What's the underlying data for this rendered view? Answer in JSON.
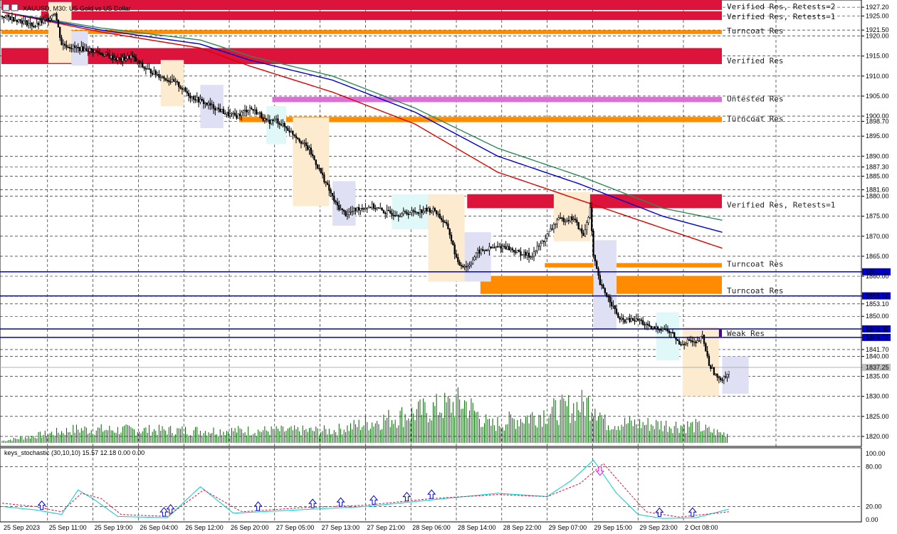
{
  "header": {
    "symbol": "XAUUSD, M30: US Gold vs US Dollar",
    "indicator": "keys_stochastic (30,10,10) 15.57 12.18 0.00 0.00"
  },
  "colors": {
    "resistance_red": "#dc143c",
    "turncoat_orange": "#ff8c00",
    "untested_violet": "#da70d6",
    "weak_purple": "#4b0082",
    "ma_green": "#2e8b57",
    "ma_blue": "#0000cd",
    "ma_red": "#e00000",
    "hline_blue": "#0000cd",
    "volume_green": "#006400",
    "stoch_main": "#00ced1",
    "stoch_signal": "#dc143c"
  },
  "chart_data": [
    {
      "type": "candlestick",
      "symbol": "XAUUSD",
      "timeframe": "M30",
      "ylim": [
        1817.5,
        1929
      ],
      "price_ticks": [
        "1927.20",
        "1925.00",
        "1921.50",
        "1920.00",
        "1915.00",
        "1910.00",
        "1905.00",
        "1900.00",
        "1898.70",
        "1895.00",
        "1890.00",
        "1887.30",
        "1885.00",
        "1881.60",
        "1880.00",
        "1875.00",
        "1870.00",
        "1865.00",
        "1861.11",
        "1860.00",
        "1855.10",
        "1855.00",
        "1853.10",
        "1850.00",
        "1846.85",
        "1844.73",
        "1841.70",
        "1840.00",
        "1837.25",
        "1835.00",
        "1830.00",
        "1825.00",
        "1820.00"
      ],
      "price_highlights": [
        {
          "label": "1861.11",
          "bg": "#0000cd"
        },
        {
          "label": "1855.10",
          "bg": "#0000cd"
        },
        {
          "label": "1846.85",
          "bg": "#0000cd"
        },
        {
          "label": "1844.73",
          "bg": "#0000cd"
        },
        {
          "label": "1837.25",
          "bg": "#c0c0c0"
        }
      ],
      "time_labels": [
        "25 Sep 2023",
        "25 Sep 11:00",
        "25 Sep 19:00",
        "26 Sep 04:00",
        "26 Sep 12:00",
        "26 Sep 20:00",
        "27 Sep 05:00",
        "27 Sep 13:00",
        "27 Sep 21:00",
        "28 Sep 06:00",
        "28 Sep 14:00",
        "28 Sep 22:00",
        "29 Sep 07:00",
        "29 Sep 15:00",
        "29 Sep 23:00",
        "2 Oct 08:00"
      ],
      "close_path": [
        [
          0,
          1925
        ],
        [
          10,
          1924
        ],
        [
          20,
          1922.5
        ],
        [
          28,
          1924.5
        ],
        [
          32,
          1926
        ],
        [
          36,
          1918
        ],
        [
          44,
          1917
        ],
        [
          54,
          1916.5
        ],
        [
          64,
          1915
        ],
        [
          72,
          1914
        ],
        [
          78,
          1915
        ],
        [
          86,
          1912
        ],
        [
          96,
          1910
        ],
        [
          106,
          1908
        ],
        [
          114,
          1905
        ],
        [
          124,
          1903
        ],
        [
          132,
          1901.5
        ],
        [
          136,
          1900.5
        ],
        [
          142,
          1900
        ],
        [
          150,
          1902
        ],
        [
          156,
          1900.5
        ],
        [
          160,
          1898.5
        ],
        [
          166,
          1899
        ],
        [
          172,
          1897
        ],
        [
          178,
          1895
        ],
        [
          186,
          1891.5
        ],
        [
          194,
          1885
        ],
        [
          202,
          1878
        ],
        [
          208,
          1875.5
        ],
        [
          216,
          1877
        ],
        [
          224,
          1877.5
        ],
        [
          232,
          1876
        ],
        [
          240,
          1875.5
        ],
        [
          248,
          1876
        ],
        [
          256,
          1876.5
        ],
        [
          262,
          1876.5
        ],
        [
          270,
          1872
        ],
        [
          276,
          1863
        ],
        [
          282,
          1862.5
        ],
        [
          288,
          1866
        ],
        [
          296,
          1867
        ],
        [
          304,
          1867.5
        ],
        [
          312,
          1866
        ],
        [
          320,
          1865
        ],
        [
          328,
          1869
        ],
        [
          336,
          1874
        ],
        [
          346,
          1874.5
        ],
        [
          352,
          1870
        ],
        [
          356,
          1877
        ],
        [
          358,
          1865
        ],
        [
          362,
          1858
        ],
        [
          368,
          1854
        ],
        [
          374,
          1849
        ],
        [
          380,
          1849
        ],
        [
          386,
          1849
        ],
        [
          392,
          1847
        ],
        [
          400,
          1847
        ],
        [
          406,
          1845.5
        ],
        [
          410,
          1843
        ],
        [
          416,
          1844
        ],
        [
          420,
          1843
        ],
        [
          424,
          1845
        ],
        [
          428,
          1838
        ],
        [
          434,
          1834
        ],
        [
          440,
          1836
        ]
      ],
      "zones": [
        {
          "label": "Verified Res, Retests=2",
          "low": 1926.5,
          "high": 1929,
          "color": "#dc143c",
          "start": 0
        },
        {
          "label": "Verified Res, Retests=1",
          "low": 1924.0,
          "high": 1926.2,
          "color": "#dc143c",
          "start": 24
        },
        {
          "label": "Turncoat Res",
          "low": 1920.5,
          "high": 1921.5,
          "color": "#ff8c00",
          "start": 0
        },
        {
          "label": "Verified Res",
          "low": 1913.0,
          "high": 1917.0,
          "color": "#dc143c",
          "start": 0
        },
        {
          "label": "Untested Res",
          "low": 1903.5,
          "high": 1904.8,
          "color": "#da70d6",
          "start": 164
        },
        {
          "label": "Turncoat Res",
          "low": 1898.5,
          "high": 1899.8,
          "color": "#ff8c00",
          "start": 144
        },
        {
          "label": "Verified Res, Retests=1",
          "low": 1877.0,
          "high": 1880.5,
          "color": "#dc143c",
          "start": 282
        },
        {
          "label": "Turncoat Res",
          "low": 1862.2,
          "high": 1863.3,
          "color": "#ff8c00",
          "start": 329
        },
        {
          "label": "Turncoat Res",
          "low": 1855.6,
          "high": 1860.1,
          "color": "#ff8c00",
          "start": 290
        },
        {
          "label": "Weak Res",
          "low": 1844.9,
          "high": 1846.7,
          "color": "#4b0082",
          "start": 420
        }
      ],
      "horizontal_lines": [
        1861.11,
        1855.1,
        1846.85,
        1844.73
      ],
      "current_price": 1837.25,
      "moving_averages": [
        {
          "color": "#2e8b57",
          "path": [
            [
              0,
              1926
            ],
            [
              60,
              1922
            ],
            [
              120,
              1919
            ],
            [
              150,
              1915
            ],
            [
              200,
              1910
            ],
            [
              250,
              1902
            ],
            [
              300,
              1892
            ],
            [
              350,
              1885
            ],
            [
              400,
              1877
            ],
            [
              436,
              1874
            ]
          ]
        },
        {
          "color": "#0000cd",
          "path": [
            [
              0,
              1926
            ],
            [
              60,
              1921.5
            ],
            [
              120,
              1918
            ],
            [
              150,
              1914
            ],
            [
              200,
              1909
            ],
            [
              250,
              1901
            ],
            [
              300,
              1890
            ],
            [
              350,
              1883
            ],
            [
              400,
              1875
            ],
            [
              436,
              1871
            ]
          ]
        },
        {
          "color": "#e00000",
          "path": [
            [
              0,
              1926
            ],
            [
              60,
              1921
            ],
            [
              120,
              1917
            ],
            [
              150,
              1912.5
            ],
            [
              200,
              1906
            ],
            [
              250,
              1898
            ],
            [
              300,
              1886
            ],
            [
              350,
              1879
            ],
            [
              400,
              1872
            ],
            [
              436,
              1867
            ]
          ]
        }
      ],
      "volume_peaks": [
        [
          0,
          3
        ],
        [
          45,
          20
        ],
        [
          120,
          18
        ],
        [
          200,
          18
        ],
        [
          280,
          60
        ],
        [
          295,
          26
        ],
        [
          359,
          60
        ],
        [
          365,
          30
        ],
        [
          420,
          25
        ],
        [
          428,
          18
        ],
        [
          436,
          14
        ]
      ]
    },
    {
      "type": "line",
      "title": "keys_stochastic (30,10,10) 15.57 12.18 0.00 0.00",
      "ylim": [
        0,
        100
      ],
      "y_ticks": [
        "100.00",
        "80.00",
        "20.00",
        "0.00"
      ],
      "series": [
        {
          "color": "#00ced1",
          "path": [
            [
              0,
              20
            ],
            [
              20,
              15
            ],
            [
              36,
              8
            ],
            [
              46,
              45
            ],
            [
              56,
              30
            ],
            [
              70,
              5
            ],
            [
              100,
              3
            ],
            [
              120,
              50
            ],
            [
              140,
              10
            ],
            [
              180,
              15
            ],
            [
              220,
              20
            ],
            [
              260,
              30
            ],
            [
              300,
              40
            ],
            [
              330,
              35
            ],
            [
              345,
              60
            ],
            [
              358,
              90
            ],
            [
              372,
              40
            ],
            [
              385,
              8
            ],
            [
              400,
              2
            ],
            [
              420,
              3
            ],
            [
              440,
              16
            ]
          ]
        },
        {
          "color": "#dc143c",
          "path": [
            [
              0,
              25
            ],
            [
              20,
              20
            ],
            [
              36,
              12
            ],
            [
              48,
              40
            ],
            [
              60,
              32
            ],
            [
              72,
              8
            ],
            [
              100,
              5
            ],
            [
              122,
              45
            ],
            [
              145,
              12
            ],
            [
              180,
              18
            ],
            [
              220,
              22
            ],
            [
              260,
              32
            ],
            [
              300,
              38
            ],
            [
              330,
              35
            ],
            [
              350,
              55
            ],
            [
              364,
              85
            ],
            [
              378,
              45
            ],
            [
              390,
              12
            ],
            [
              410,
              4
            ],
            [
              440,
              12
            ]
          ]
        }
      ],
      "up_arrows": [
        24,
        98,
        102,
        155,
        188,
        205,
        225,
        245,
        260,
        398,
        418
      ],
      "down_arrows": [
        362
      ]
    }
  ]
}
